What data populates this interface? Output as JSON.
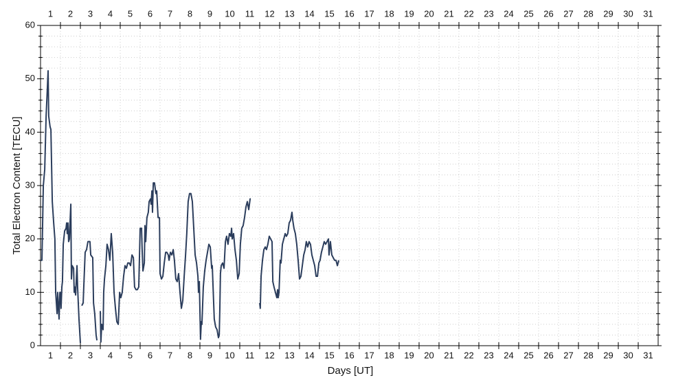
{
  "chart_data": {
    "type": "line",
    "xlabel": "Days [UT]",
    "ylabel": "Total Electron Content [TECU]",
    "xlim": [
      0.5,
      31.5
    ],
    "ylim": [
      0,
      60
    ],
    "xticks": [
      1,
      2,
      3,
      4,
      5,
      6,
      7,
      8,
      9,
      10,
      11,
      12,
      13,
      14,
      15,
      16,
      17,
      18,
      19,
      20,
      21,
      22,
      23,
      24,
      25,
      26,
      27,
      28,
      29,
      30,
      31
    ],
    "yticks": [
      0,
      10,
      20,
      30,
      40,
      50,
      60
    ],
    "grid": true,
    "x": [
      0.5,
      0.57,
      0.64,
      0.71,
      0.78,
      0.84,
      0.88,
      0.91,
      0.98,
      1.02,
      1.09,
      1.16,
      1.22,
      1.26,
      1.33,
      1.36,
      1.43,
      1.47,
      1.5,
      1.53,
      1.57,
      1.6,
      1.64,
      1.71,
      1.78,
      1.81,
      1.84,
      1.88,
      1.91,
      1.95,
      1.98,
      2.02,
      2.05,
      2.09,
      2.16,
      2.19,
      2.22,
      2.26,
      2.33,
      2.36,
      2.43,
      2.5,
      null,
      2.57,
      2.64,
      2.67,
      2.74,
      2.81,
      2.88,
      2.98,
      3.02,
      3.12,
      3.16,
      3.22,
      3.29,
      3.33,
      null,
      3.5,
      3.53,
      3.57,
      3.64,
      3.67,
      3.71,
      3.78,
      3.84,
      3.91,
      3.98,
      4.05,
      4.12,
      4.19,
      4.26,
      4.33,
      4.4,
      4.47,
      4.53,
      4.6,
      4.67,
      4.74,
      4.81,
      4.88,
      4.95,
      5.02,
      5.09,
      5.16,
      5.22,
      5.29,
      5.36,
      5.43,
      5.5,
      5.57,
      5.6,
      5.64,
      5.71,
      5.74,
      5.78,
      5.84,
      5.91,
      5.95,
      6.02,
      6.05,
      6.09,
      6.12,
      6.16,
      6.22,
      6.29,
      6.33,
      6.4,
      6.47,
      6.5,
      6.57,
      6.64,
      6.71,
      6.78,
      6.84,
      6.91,
      6.95,
      7.02,
      7.09,
      7.16,
      7.22,
      7.29,
      7.36,
      7.43,
      7.5,
      7.57,
      7.64,
      7.71,
      7.78,
      7.84,
      7.91,
      7.98,
      8.05,
      8.12,
      8.19,
      8.26,
      8.33,
      8.4,
      8.43,
      8.47,
      8.53,
      8.57,
      8.6,
      8.67,
      8.74,
      8.81,
      8.88,
      8.95,
      9.02,
      9.09,
      9.12,
      9.16,
      9.22,
      9.29,
      9.36,
      9.43,
      9.47,
      9.5,
      9.53,
      9.57,
      9.64,
      9.71,
      9.78,
      9.84,
      9.91,
      9.98,
      10.05,
      10.09,
      10.12,
      10.19,
      10.26,
      10.33,
      10.4,
      10.47,
      10.53,
      10.6,
      10.67,
      10.74,
      10.81,
      10.88,
      10.95,
      11.02,
      11.05,
      null,
      11.5,
      11.53,
      11.57,
      11.64,
      11.71,
      11.78,
      11.84,
      11.91,
      11.98,
      12.05,
      12.12,
      12.16,
      12.22,
      12.29,
      12.36,
      12.4,
      12.43,
      12.47,
      12.53,
      12.57,
      12.64,
      12.71,
      12.78,
      12.84,
      12.91,
      12.98,
      13.05,
      13.12,
      13.16,
      13.22,
      13.29,
      13.36,
      13.43,
      13.5,
      13.57,
      13.64,
      13.71,
      13.78,
      13.84,
      13.91,
      13.98,
      14.05,
      14.12,
      14.19,
      14.26,
      14.33,
      14.4,
      14.47,
      14.53,
      14.6,
      14.67,
      14.74,
      14.81,
      14.88,
      14.95,
      14.98,
      15.05,
      15.12,
      15.19,
      15.26,
      15.33,
      15.4,
      15.47
    ],
    "series": [
      {
        "color": "#2b3d5c",
        "values": [
          16,
          16,
          30,
          33,
          43,
          48,
          51.5,
          43,
          41,
          40.5,
          27,
          23,
          20,
          10,
          6,
          10,
          5,
          10,
          10,
          7,
          11,
          12,
          19,
          21.5,
          22,
          23,
          21,
          23,
          19.5,
          20,
          23,
          26.5,
          12.5,
          15,
          14.5,
          10,
          11,
          9.5,
          15,
          11,
          5,
          0.5,
          null,
          7.5,
          8,
          11,
          17.5,
          18,
          19.5,
          19.5,
          17,
          16.5,
          8,
          6,
          2,
          1,
          null,
          6.5,
          0.7,
          4,
          3,
          10,
          12.5,
          15,
          19,
          18,
          16,
          21,
          17.5,
          10,
          7,
          4.5,
          4,
          10,
          9,
          10,
          13,
          15,
          14.5,
          15.5,
          15.5,
          15,
          17,
          16.5,
          11,
          10.5,
          10.5,
          11,
          22,
          22,
          18,
          14,
          15.5,
          22.5,
          19.5,
          24,
          25,
          27,
          27.5,
          26.5,
          29,
          25,
          30.5,
          30.5,
          28.5,
          29,
          24,
          24,
          13.5,
          12.5,
          13,
          15.5,
          17.5,
          17.5,
          17,
          16,
          17.5,
          17,
          18,
          16,
          12.5,
          12,
          13.5,
          10,
          7,
          8.5,
          13,
          17,
          21,
          27,
          28.5,
          28.5,
          27,
          22,
          17,
          15.5,
          13,
          10,
          12,
          1.2,
          4.5,
          4,
          11,
          14,
          16,
          17.5,
          19,
          18.5,
          14.5,
          15,
          11,
          5,
          3.5,
          3,
          1.5,
          2,
          7,
          13.5,
          15,
          15.5,
          14.5,
          19.5,
          20.5,
          19,
          21,
          20.5,
          22,
          20,
          21,
          18,
          16,
          12.5,
          13.5,
          19,
          22,
          22.5,
          24,
          26,
          27,
          25.5,
          27.5,
          27.5,
          null,
          8,
          7,
          13,
          16,
          18,
          18.5,
          18,
          19,
          20.5,
          20,
          19.5,
          12,
          11,
          10,
          9,
          10.5,
          9,
          10,
          16,
          15.5,
          19,
          20,
          21,
          20.5,
          21,
          23,
          23.5,
          25,
          23.5,
          22,
          21,
          19,
          16,
          12.5,
          13,
          15,
          17,
          18,
          19.5,
          18.5,
          19.5,
          19,
          17,
          16,
          15,
          13,
          13,
          15.5,
          16,
          17.5,
          18.5,
          19.5,
          19,
          19.5,
          20,
          17,
          19.5,
          17,
          16.5,
          16,
          16,
          15,
          16
        ]
      }
    ]
  }
}
